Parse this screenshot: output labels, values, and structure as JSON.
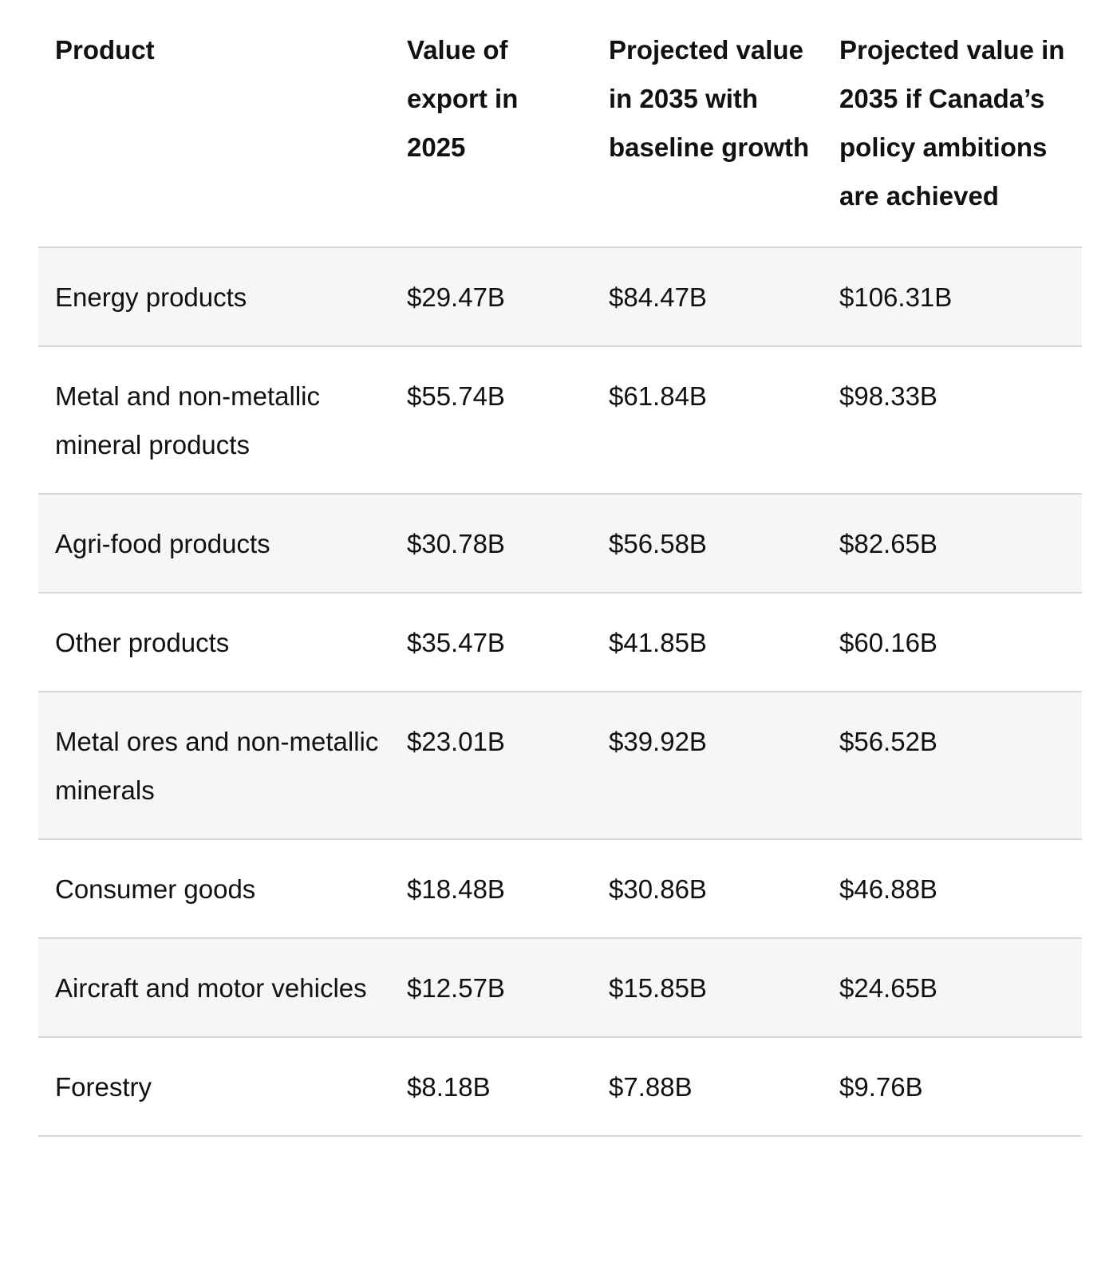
{
  "table": {
    "headers": [
      "Product",
      "Value of export in 2025",
      "Projected value in 2035 with baseline growth",
      "Projected value in 2035 if Canada’s policy ambitions are achieved"
    ],
    "rows": [
      [
        "Energy products",
        "$29.47B",
        "$84.47B",
        "$106.31B"
      ],
      [
        "Metal and non-metallic mineral products",
        "$55.74B",
        "$61.84B",
        "$98.33B"
      ],
      [
        "Agri-food products",
        "$30.78B",
        "$56.58B",
        "$82.65B"
      ],
      [
        "Other products",
        "$35.47B",
        "$41.85B",
        "$60.16B"
      ],
      [
        "Metal ores and non-metallic minerals",
        "$23.01B",
        "$39.92B",
        "$56.52B"
      ],
      [
        "Consumer goods",
        "$18.48B",
        "$30.86B",
        "$46.88B"
      ],
      [
        "Aircraft and motor vehicles",
        "$12.57B",
        "$15.85B",
        "$24.65B"
      ],
      [
        "Forestry",
        "$8.18B",
        "$7.88B",
        "$9.76B"
      ]
    ]
  },
  "colors": {
    "row_shade": "#f5f6f8",
    "divider": "#d4d7dc",
    "text": "#111111"
  }
}
